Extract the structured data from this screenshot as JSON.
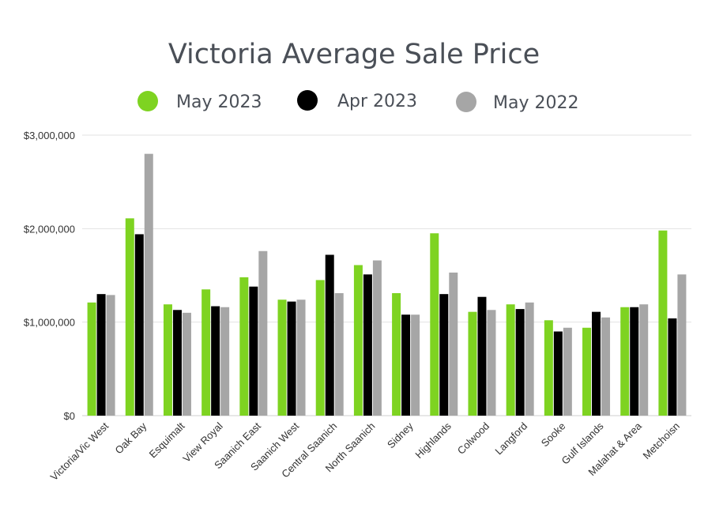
{
  "chart_data": {
    "type": "bar",
    "title": "Victoria Average Sale Price",
    "xlabel": "",
    "ylabel": "",
    "ylim": [
      0,
      3000000
    ],
    "yticks": [
      0,
      1000000,
      2000000,
      3000000
    ],
    "ytick_labels": [
      "$0",
      "$1,000,000",
      "$2,000,000",
      "$3,000,000"
    ],
    "grid": true,
    "legend_position": "top",
    "categories": [
      "Victoria/Vic West",
      "Oak Bay",
      "Esquimalt",
      "View Royal",
      "Saanich East",
      "Saanich West",
      "Central Saanich",
      "North Saanich",
      "Sidney",
      "Highlands",
      "Colwood",
      "Langford",
      "Sooke",
      "Gulf Islands",
      "Malahat & Area",
      "Metchoisn"
    ],
    "series": [
      {
        "name": "May 2023",
        "color": "#7ed321",
        "values": [
          1210000,
          2110000,
          1190000,
          1350000,
          1480000,
          1240000,
          1450000,
          1610000,
          1310000,
          1950000,
          1110000,
          1190000,
          1020000,
          940000,
          1160000,
          1980000
        ]
      },
      {
        "name": "Apr 2023",
        "color": "#000000",
        "values": [
          1300000,
          1940000,
          1130000,
          1170000,
          1380000,
          1220000,
          1720000,
          1510000,
          1080000,
          1300000,
          1270000,
          1140000,
          900000,
          1110000,
          1160000,
          1040000
        ]
      },
      {
        "name": "May 2022",
        "color": "#a6a6a6",
        "values": [
          1290000,
          2800000,
          1100000,
          1160000,
          1760000,
          1240000,
          1310000,
          1660000,
          1080000,
          1530000,
          1130000,
          1210000,
          940000,
          1050000,
          1190000,
          1510000
        ]
      }
    ]
  }
}
